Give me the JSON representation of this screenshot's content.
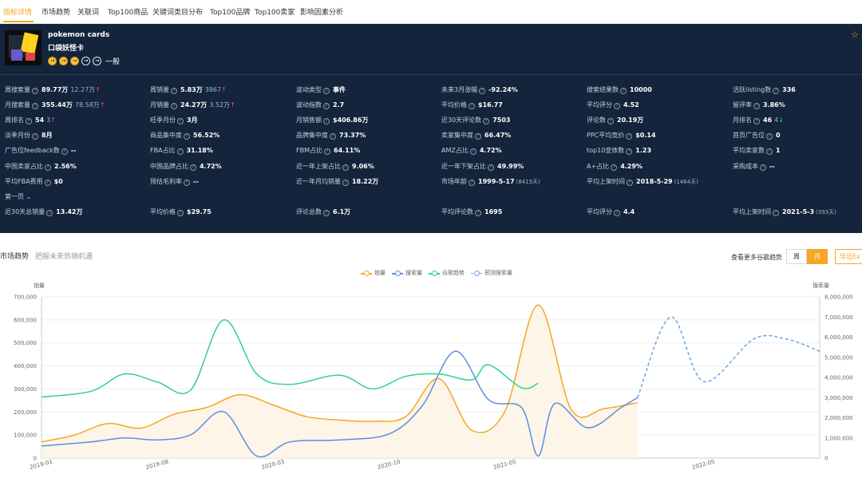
{
  "tabs": [
    "指标详情",
    "市场趋势",
    "关联词",
    "Top100商品",
    "关键词类目分布",
    "Top100品牌",
    "Top100卖家",
    "影响因素分析"
  ],
  "product": {
    "title_en": "pokemon cards",
    "title_cn": "口袋妖怪卡",
    "sentiment": "一般",
    "faces_filled": 3,
    "faces_total": 5
  },
  "metrics": [
    [
      {
        "label": "周搜索量",
        "value": "89.77万",
        "change": "12.27万",
        "trend": "up"
      },
      {
        "label": "周销量",
        "value": "5.83万",
        "change": "3867",
        "trend": "up"
      },
      {
        "label": "波动类型",
        "value": "事件"
      },
      {
        "label": "未来3月涨幅",
        "value": "-92.24%"
      },
      {
        "label": "搜索结果数",
        "value": "10000"
      },
      {
        "label": "活跃listing数",
        "value": "336"
      }
    ],
    [
      {
        "label": "月搜索量",
        "value": "355.44万",
        "change": "78.58万",
        "trend": "up"
      },
      {
        "label": "月销量",
        "value": "24.27万",
        "change": "3.52万",
        "trend": "up"
      },
      {
        "label": "波动指数",
        "value": "2.7"
      },
      {
        "label": "平均价格",
        "value": "$16.77"
      },
      {
        "label": "平均评分",
        "value": "4.52"
      },
      {
        "label": "留评率",
        "value": "3.86%"
      }
    ],
    [
      {
        "label": "周排名",
        "value": "54",
        "change": "3",
        "trend": "up"
      },
      {
        "label": "旺季月份",
        "value": "3月"
      },
      {
        "label": "月销售额",
        "value": "$406.86万"
      },
      {
        "label": "近30天评论数",
        "value": "7503"
      },
      {
        "label": "评论数",
        "value": "20.19万"
      },
      {
        "label": "月排名",
        "value": "46",
        "change": "4",
        "trend": "down"
      }
    ],
    [
      {
        "label": "淡季月份",
        "value": "8月"
      },
      {
        "label": "商品集中度",
        "value": "56.52%"
      },
      {
        "label": "品牌集中度",
        "value": "73.37%"
      },
      {
        "label": "卖家集中度",
        "value": "66.47%"
      },
      {
        "label": "PPC平均竞价",
        "value": "$0.14"
      },
      {
        "label": "首页广告位",
        "value": "0"
      }
    ],
    [
      {
        "label": "广告位feedback数",
        "value": "--"
      },
      {
        "label": "FBA占比",
        "value": "31.18%"
      },
      {
        "label": "FBM占比",
        "value": "64.11%"
      },
      {
        "label": "AMZ占比",
        "value": "4.72%"
      },
      {
        "label": "top10变体数",
        "value": "1.23"
      },
      {
        "label": "平均卖家数",
        "value": "1"
      }
    ],
    [
      {
        "label": "中国卖家占比",
        "value": "2.56%"
      },
      {
        "label": "中国品牌占比",
        "value": "4.72%"
      },
      {
        "label": "近一年上架占比",
        "value": "9.06%"
      },
      {
        "label": "近一年下架占比",
        "value": "49.99%"
      },
      {
        "label": "A+占比",
        "value": "4.29%"
      },
      {
        "label": "采购成本",
        "value": "--"
      }
    ],
    [
      {
        "label": "平均FBA费用",
        "value": "$0"
      },
      {
        "label": "预估毛利率",
        "value": "--"
      },
      {
        "label": "近一年月均销量",
        "value": "18.22万"
      },
      {
        "label": "市场年龄",
        "value": "1999-5-17",
        "small": "(8415天)"
      },
      {
        "label": "平均上架时间",
        "value": "2018-5-29",
        "small": "(1464天)"
      }
    ]
  ],
  "first_page": {
    "label": "第一页",
    "metrics": [
      {
        "label": "近30天总销量",
        "value": "13.42万"
      },
      {
        "label": "平均价格",
        "value": "$29.75"
      },
      {
        "label": "评论总数",
        "value": "6.1万"
      },
      {
        "label": "平均评论数",
        "value": "1695"
      },
      {
        "label": "平均评分",
        "value": "4.4"
      },
      {
        "label": "平均上架时间",
        "value": "2021-5-3",
        "small": "(393天)"
      }
    ]
  },
  "market": {
    "title": "市场趋势",
    "subtitle": "把握未来热销机遇",
    "google_link": "查看更多谷歌趋势",
    "period_week": "周",
    "period_month": "月",
    "export": "导出Ex"
  },
  "colors": {
    "sales": "#f5a623",
    "search": "#5b8fe0",
    "google": "#2fd28a",
    "forecast": "#6ea0e8"
  },
  "chart_data": {
    "type": "line",
    "x": [
      "2019-01",
      "2019-08",
      "2020-03",
      "2020-10",
      "2021-05",
      "2022-05"
    ],
    "series": [
      {
        "name": "销量",
        "axis": "left",
        "values": [
          [
            "2019-01",
            70000
          ],
          [
            "2019-03",
            100000
          ],
          [
            "2019-05",
            150000
          ],
          [
            "2019-07",
            130000
          ],
          [
            "2019-09",
            190000
          ],
          [
            "2019-11",
            220000
          ],
          [
            "2020-01",
            275000
          ],
          [
            "2020-03",
            230000
          ],
          [
            "2020-05",
            180000
          ],
          [
            "2020-07",
            165000
          ],
          [
            "2020-09",
            160000
          ],
          [
            "2020-11",
            180000
          ],
          [
            "2021-01",
            345000
          ],
          [
            "2021-03",
            120000
          ],
          [
            "2021-05",
            205000
          ],
          [
            "2021-07",
            665000
          ],
          [
            "2021-09",
            210000
          ],
          [
            "2021-11",
            215000
          ],
          [
            "2022-01",
            240000
          ]
        ]
      },
      {
        "name": "搜索量",
        "axis": "right",
        "values": [
          [
            "2019-01",
            600000
          ],
          [
            "2019-04",
            800000
          ],
          [
            "2019-06",
            1000000
          ],
          [
            "2019-08",
            900000
          ],
          [
            "2019-10",
            1150000
          ],
          [
            "2019-12",
            2300000
          ],
          [
            "2020-02",
            100000
          ],
          [
            "2020-04",
            800000
          ],
          [
            "2020-07",
            900000
          ],
          [
            "2020-10",
            1200000
          ],
          [
            "2020-12",
            2600000
          ],
          [
            "2021-02",
            5300000
          ],
          [
            "2021-04",
            2900000
          ],
          [
            "2021-06",
            2500000
          ],
          [
            "2021-07",
            100000
          ],
          [
            "2021-08",
            2700000
          ],
          [
            "2021-10",
            1500000
          ],
          [
            "2021-12",
            2500000
          ],
          [
            "2022-01",
            3000000
          ]
        ]
      },
      {
        "name": "谷歌趋势",
        "axis": "left",
        "values": [
          [
            "2019-01",
            265000
          ],
          [
            "2019-04",
            290000
          ],
          [
            "2019-06",
            365000
          ],
          [
            "2019-08",
            330000
          ],
          [
            "2019-10",
            295000
          ],
          [
            "2019-12",
            600000
          ],
          [
            "2020-02",
            365000
          ],
          [
            "2020-04",
            320000
          ],
          [
            "2020-07",
            360000
          ],
          [
            "2020-09",
            300000
          ],
          [
            "2020-11",
            355000
          ],
          [
            "2021-01",
            365000
          ],
          [
            "2021-03",
            340000
          ],
          [
            "2021-04",
            405000
          ],
          [
            "2021-06",
            305000
          ],
          [
            "2021-07",
            325000
          ]
        ]
      },
      {
        "name": "预测搜索量",
        "axis": "right",
        "dashed": true,
        "values": [
          [
            "2022-01",
            3000000
          ],
          [
            "2022-03",
            7000000
          ],
          [
            "2022-05",
            3800000
          ],
          [
            "2022-08",
            5900000
          ],
          [
            "2022-10",
            5900000
          ],
          [
            "2022-12",
            5300000
          ]
        ]
      }
    ],
    "ylabel_left": "销量",
    "ylabel_right": "搜索量",
    "yticks_left": [
      "0",
      "100,000",
      "200,000",
      "300,000",
      "400,000",
      "500,000",
      "600,000",
      "700,000"
    ],
    "yticks_right": [
      "0",
      "1,000,000",
      "2,000,000",
      "3,000,000",
      "4,000,000",
      "5,000,000",
      "6,000,000",
      "7,000,000",
      "8,000,000"
    ],
    "ylim_left": [
      0,
      700000
    ],
    "ylim_right": [
      0,
      8000000
    ],
    "xlim": [
      "2019-01",
      "2022-12"
    ],
    "legend": "top-center",
    "grid": true
  }
}
